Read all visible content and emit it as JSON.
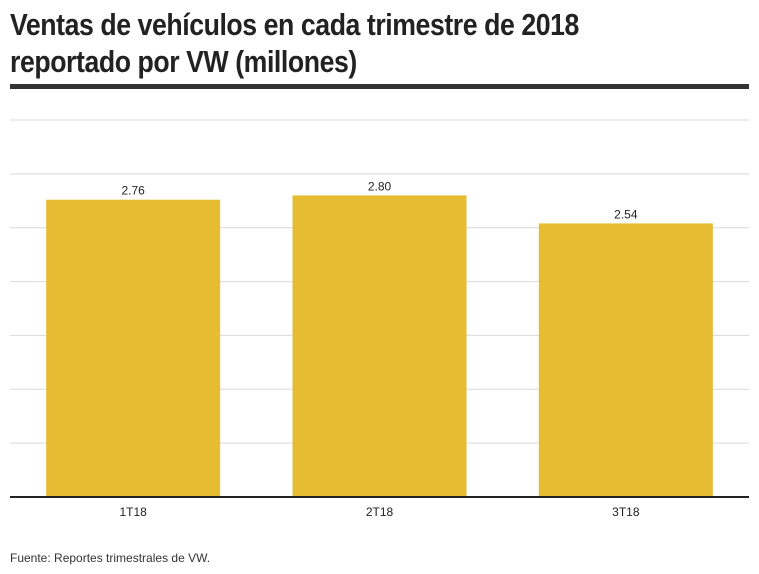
{
  "header": {
    "title_line1": "Ventas de vehículos en cada trimestre de 2018",
    "title_line2": "reportado por VW (millones)"
  },
  "footer": {
    "source": "Fuente: Reportes trimestrales de VW."
  },
  "colors": {
    "bar": "#e6bd32",
    "grid": "#d9d9d9",
    "axis": "#222222",
    "title_rule": "#333333"
  },
  "chart_data": {
    "type": "bar",
    "title": "Ventas de vehículos en cada trimestre de 2018 reportado por VW (millones)",
    "categories": [
      "1T18",
      "2T18",
      "3T18"
    ],
    "values": [
      2.76,
      2.8,
      2.54
    ],
    "value_labels": [
      "2.76",
      "2.80",
      "2.54"
    ],
    "xlabel": "",
    "ylabel": "",
    "ylim": [
      0,
      3.5
    ],
    "grid": true,
    "legend": "none"
  }
}
